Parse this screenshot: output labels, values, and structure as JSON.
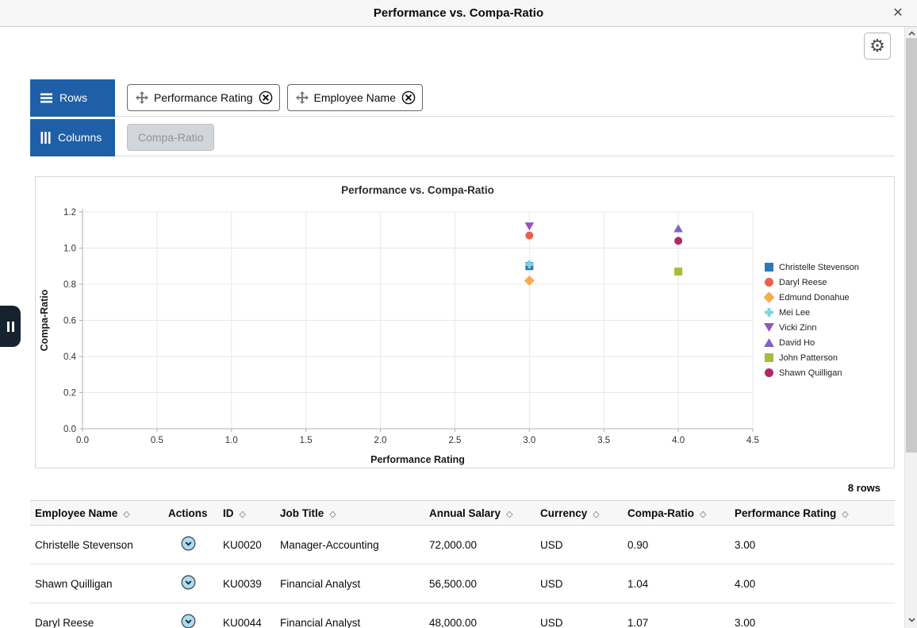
{
  "window": {
    "title": "Performance vs. Compa-Ratio"
  },
  "icons": {
    "close": "✕",
    "gear": "⚙",
    "sort": "◇"
  },
  "pivot": {
    "rows_label": "Rows",
    "columns_label": "Columns",
    "row_fields": [
      "Performance Rating",
      "Employee Name"
    ],
    "column_fields": [
      "Compa-Ratio"
    ]
  },
  "chart_data": {
    "type": "scatter",
    "title": "Performance vs. Compa-Ratio",
    "xlabel": "Performance Rating",
    "ylabel": "Compa-Ratio",
    "xlim": [
      0,
      4.5
    ],
    "ylim": [
      0,
      1.2
    ],
    "xticks": [
      "0.0",
      "0.5",
      "1.0",
      "1.5",
      "2.0",
      "2.5",
      "3.0",
      "3.5",
      "4.0",
      "4.5"
    ],
    "yticks": [
      "0.0",
      "0.2",
      "0.4",
      "0.6",
      "0.8",
      "1.0",
      "1.2"
    ],
    "grid": true,
    "legend_position": "right",
    "series": [
      {
        "name": "Christelle Stevenson",
        "marker": "square",
        "color": "#2e79b9",
        "points": [
          [
            3.0,
            0.9
          ]
        ]
      },
      {
        "name": "Daryl Reese",
        "marker": "circle",
        "color": "#e8604c",
        "points": [
          [
            3.0,
            1.07
          ]
        ]
      },
      {
        "name": "Edmund Donahue",
        "marker": "diamond",
        "color": "#f5ac55",
        "points": [
          [
            3.0,
            0.82
          ]
        ]
      },
      {
        "name": "Mei Lee",
        "marker": "plus",
        "color": "#7fd4db",
        "points": [
          [
            3.0,
            0.91
          ]
        ]
      },
      {
        "name": "Vicki Zinn",
        "marker": "triangle-down",
        "color": "#9455b8",
        "points": [
          [
            3.0,
            1.12
          ]
        ]
      },
      {
        "name": "David Ho",
        "marker": "triangle-up",
        "color": "#7e63c1",
        "points": [
          [
            4.0,
            1.11
          ]
        ]
      },
      {
        "name": "John Patterson",
        "marker": "square",
        "color": "#a2be3a",
        "points": [
          [
            4.0,
            0.87
          ]
        ]
      },
      {
        "name": "Shawn Quilligan",
        "marker": "circle",
        "color": "#ae2a66",
        "points": [
          [
            4.0,
            1.04
          ]
        ]
      }
    ]
  },
  "rows_count": "8 rows",
  "table": {
    "columns": [
      {
        "label": "Employee Name",
        "key": "employee_name",
        "sortable": true
      },
      {
        "label": "Actions",
        "key": "actions",
        "sortable": false
      },
      {
        "label": "ID",
        "key": "id",
        "sortable": true
      },
      {
        "label": "Job Title",
        "key": "job_title",
        "sortable": true
      },
      {
        "label": "Annual Salary",
        "key": "annual_salary",
        "sortable": true
      },
      {
        "label": "Currency",
        "key": "currency",
        "sortable": true
      },
      {
        "label": "Compa-Ratio",
        "key": "compa_ratio",
        "sortable": true
      },
      {
        "label": "Performance Rating",
        "key": "performance_rating",
        "sortable": true
      }
    ],
    "rows": [
      {
        "employee_name": "Christelle Stevenson",
        "id": "KU0020",
        "job_title": "Manager-Accounting",
        "annual_salary": "72,000.00",
        "currency": "USD",
        "compa_ratio": "0.90",
        "performance_rating": "3.00"
      },
      {
        "employee_name": "Shawn Quilligan",
        "id": "KU0039",
        "job_title": "Financial Analyst",
        "annual_salary": "56,500.00",
        "currency": "USD",
        "compa_ratio": "1.04",
        "performance_rating": "4.00"
      },
      {
        "employee_name": "Daryl Reese",
        "id": "KU0044",
        "job_title": "Financial Analyst",
        "annual_salary": "48,000.00",
        "currency": "USD",
        "compa_ratio": "1.07",
        "performance_rating": "3.00"
      }
    ]
  }
}
